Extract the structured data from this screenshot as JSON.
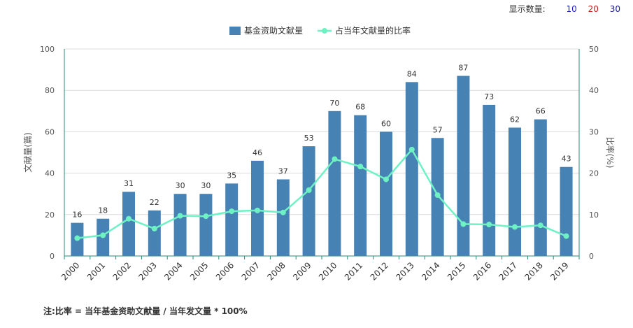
{
  "display_count": {
    "label": "显示数量:",
    "options": [
      {
        "label": "10",
        "color": "#1a1acc"
      },
      {
        "label": "20",
        "color": "#cc1a1a"
      },
      {
        "label": "30",
        "color": "#1a1a99"
      }
    ]
  },
  "footnote": "注:比率 = 当年基金资助文献量 / 当年发文量 * 100%",
  "chart_data": {
    "type": "bar",
    "categories": [
      "2000",
      "2001",
      "2002",
      "2003",
      "2004",
      "2005",
      "2006",
      "2007",
      "2008",
      "2009",
      "2010",
      "2011",
      "2012",
      "2013",
      "2014",
      "2015",
      "2016",
      "2017",
      "2018",
      "2019"
    ],
    "series": [
      {
        "name": "基金资助文献量",
        "type": "bar",
        "axis": "left",
        "color": "#4682b4",
        "values": [
          16,
          18,
          31,
          22,
          30,
          30,
          35,
          46,
          37,
          53,
          70,
          68,
          60,
          84,
          57,
          87,
          73,
          62,
          66,
          43
        ]
      },
      {
        "name": "占当年文献量的比率",
        "type": "line",
        "axis": "right",
        "color": "#6ef2c4",
        "values": [
          4.3,
          5.0,
          9.0,
          6.6,
          9.7,
          9.6,
          10.8,
          11.0,
          10.5,
          15.9,
          23.4,
          21.6,
          18.5,
          25.7,
          14.7,
          7.7,
          7.6,
          7.0,
          7.4,
          4.8
        ]
      }
    ],
    "ylabel": "文献量(篇)",
    "y2label": "比率(%)",
    "ylim": [
      0,
      100
    ],
    "y2lim": [
      0,
      50
    ],
    "yticks": [
      "0",
      "20",
      "40",
      "60",
      "80",
      "100"
    ],
    "y2ticks": [
      "0",
      "10",
      "20",
      "30",
      "40",
      "50"
    ],
    "legend": "top-center",
    "grid": true
  }
}
